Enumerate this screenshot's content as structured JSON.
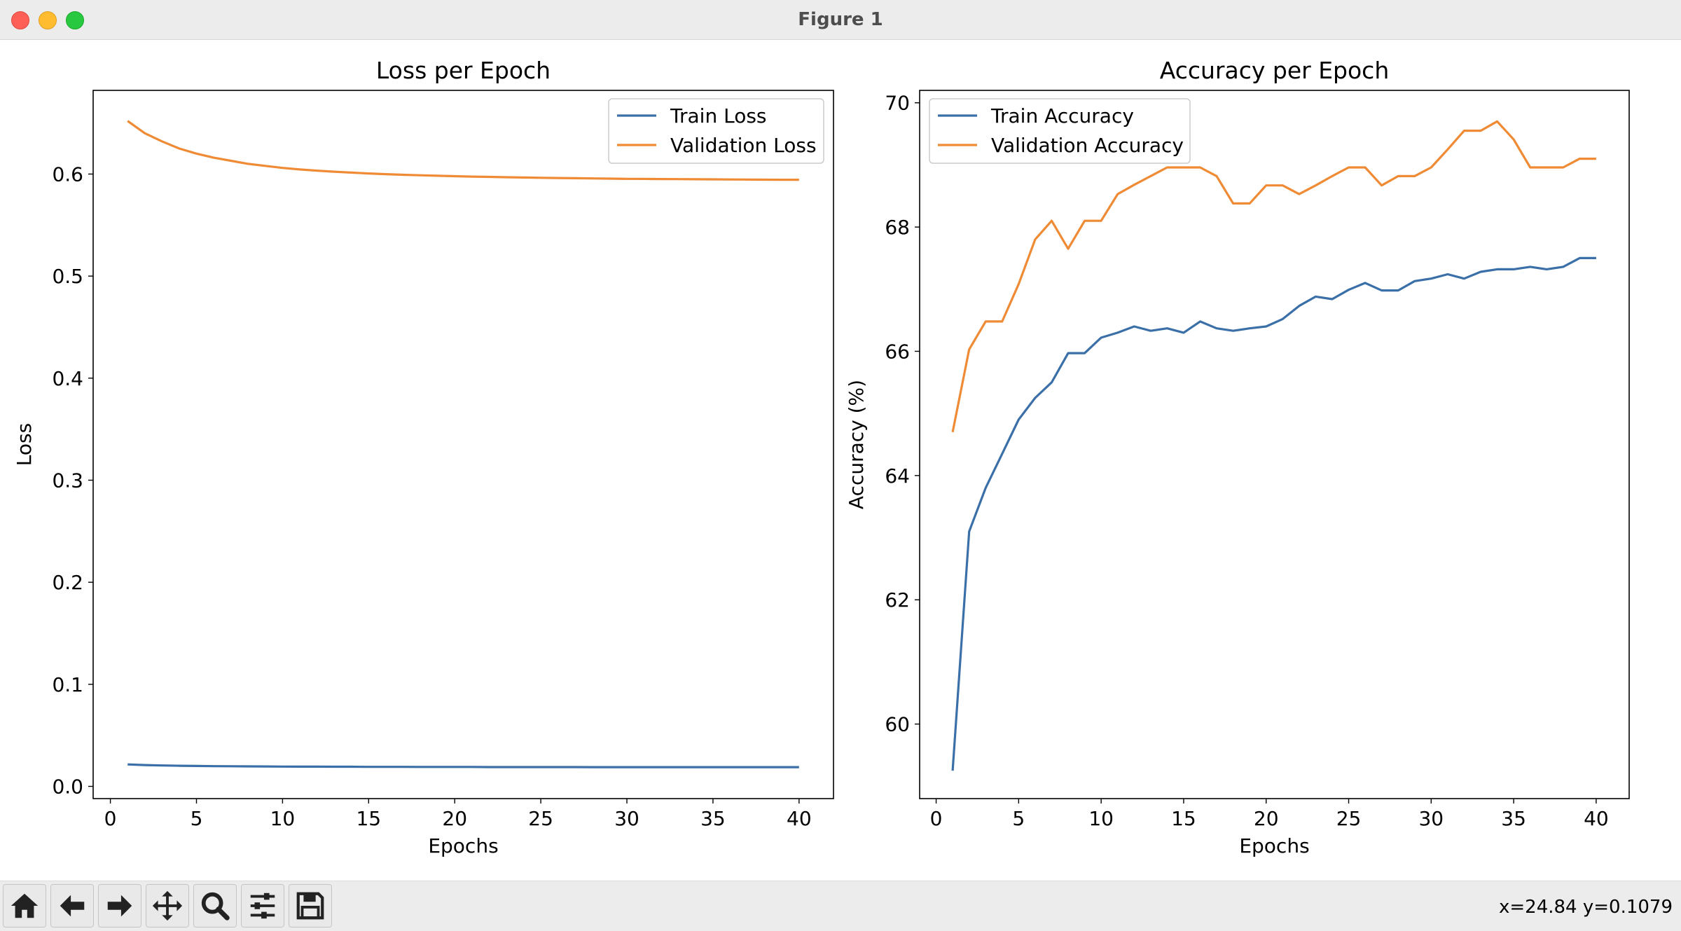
{
  "window": {
    "title": "Figure 1"
  },
  "status": {
    "coords": "x=24.84 y=0.1079"
  },
  "toolbar": {
    "buttons": [
      {
        "name": "home-icon"
      },
      {
        "name": "back-arrow-icon"
      },
      {
        "name": "forward-arrow-icon"
      },
      {
        "name": "pan-icon"
      },
      {
        "name": "zoom-icon"
      },
      {
        "name": "configure-subplots-icon"
      },
      {
        "name": "save-icon"
      }
    ]
  },
  "colors": {
    "train": "#3a6fa8",
    "validation": "#ef8a35"
  },
  "chart_data": [
    {
      "type": "line",
      "title": "Loss per Epoch",
      "xlabel": "Epochs",
      "ylabel": "Loss",
      "xlim": [
        -1,
        42
      ],
      "ylim": [
        -0.012,
        0.682
      ],
      "xticks": [
        0,
        5,
        10,
        15,
        20,
        25,
        30,
        35,
        40
      ],
      "yticks": [
        0.0,
        0.1,
        0.2,
        0.3,
        0.4,
        0.5,
        0.6
      ],
      "ytick_labels": [
        "0.0",
        "0.1",
        "0.2",
        "0.3",
        "0.4",
        "0.5",
        "0.6"
      ],
      "legend": "upper right",
      "x": [
        1,
        2,
        3,
        4,
        5,
        6,
        7,
        8,
        9,
        10,
        11,
        12,
        13,
        14,
        15,
        16,
        17,
        18,
        19,
        20,
        21,
        22,
        23,
        24,
        25,
        26,
        27,
        28,
        29,
        30,
        31,
        32,
        33,
        34,
        35,
        36,
        37,
        38,
        39,
        40
      ],
      "series": [
        {
          "name": "Train Loss",
          "color": "#3a6fa8",
          "values": [
            0.0215,
            0.0209,
            0.0205,
            0.0202,
            0.02,
            0.0198,
            0.0197,
            0.0196,
            0.0195,
            0.0194,
            0.0193,
            0.0193,
            0.0192,
            0.0192,
            0.0191,
            0.0191,
            0.0191,
            0.019,
            0.019,
            0.019,
            0.019,
            0.0189,
            0.0189,
            0.0189,
            0.0189,
            0.0189,
            0.0189,
            0.0188,
            0.0188,
            0.0188,
            0.0188,
            0.0188,
            0.0188,
            0.0188,
            0.0188,
            0.0188,
            0.0188,
            0.0188,
            0.0188,
            0.0188
          ]
        },
        {
          "name": "Validation Loss",
          "color": "#ef8a35",
          "values": [
            0.652,
            0.64,
            0.632,
            0.625,
            0.62,
            0.616,
            0.613,
            0.61,
            0.608,
            0.606,
            0.6045,
            0.6033,
            0.6023,
            0.6014,
            0.6006,
            0.5999,
            0.5993,
            0.5988,
            0.5983,
            0.5979,
            0.5975,
            0.5972,
            0.5969,
            0.5966,
            0.5963,
            0.5961,
            0.5959,
            0.5957,
            0.5955,
            0.5953,
            0.5952,
            0.5951,
            0.595,
            0.5949,
            0.5948,
            0.5947,
            0.5946,
            0.5945,
            0.5944,
            0.5944
          ]
        }
      ]
    },
    {
      "type": "line",
      "title": "Accuracy per Epoch",
      "xlabel": "Epochs",
      "ylabel": "Accuracy (%)",
      "xlim": [
        -1,
        42
      ],
      "ylim": [
        58.8,
        70.2
      ],
      "xticks": [
        0,
        5,
        10,
        15,
        20,
        25,
        30,
        35,
        40
      ],
      "yticks": [
        60,
        62,
        64,
        66,
        68,
        70
      ],
      "ytick_labels": [
        "60",
        "62",
        "64",
        "66",
        "68",
        "70"
      ],
      "legend": "upper left",
      "x": [
        1,
        2,
        3,
        4,
        5,
        6,
        7,
        8,
        9,
        10,
        11,
        12,
        13,
        14,
        15,
        16,
        17,
        18,
        19,
        20,
        21,
        22,
        23,
        24,
        25,
        26,
        27,
        28,
        29,
        30,
        31,
        32,
        33,
        34,
        35,
        36,
        37,
        38,
        39,
        40
      ],
      "series": [
        {
          "name": "Train Accuracy",
          "color": "#3a6fa8",
          "values": [
            59.25,
            63.1,
            63.8,
            64.35,
            64.9,
            65.25,
            65.5,
            65.97,
            65.97,
            66.22,
            66.3,
            66.4,
            66.33,
            66.37,
            66.3,
            66.48,
            66.37,
            66.33,
            66.37,
            66.4,
            66.52,
            66.73,
            66.88,
            66.84,
            66.99,
            67.1,
            66.98,
            66.98,
            67.13,
            67.17,
            67.24,
            67.17,
            67.28,
            67.32,
            67.32,
            67.36,
            67.32,
            67.36,
            67.5,
            67.5
          ]
        },
        {
          "name": "Validation Accuracy",
          "color": "#ef8a35",
          "values": [
            64.7,
            66.03,
            66.48,
            66.48,
            67.08,
            67.8,
            68.1,
            67.65,
            68.1,
            68.1,
            68.53,
            68.68,
            68.82,
            68.96,
            68.96,
            68.96,
            68.82,
            68.38,
            68.38,
            68.67,
            68.67,
            68.53,
            68.67,
            68.82,
            68.96,
            68.96,
            68.67,
            68.82,
            68.82,
            68.96,
            69.25,
            69.55,
            69.55,
            69.7,
            69.41,
            68.96,
            68.96,
            68.96,
            69.1,
            69.1
          ]
        }
      ]
    }
  ]
}
